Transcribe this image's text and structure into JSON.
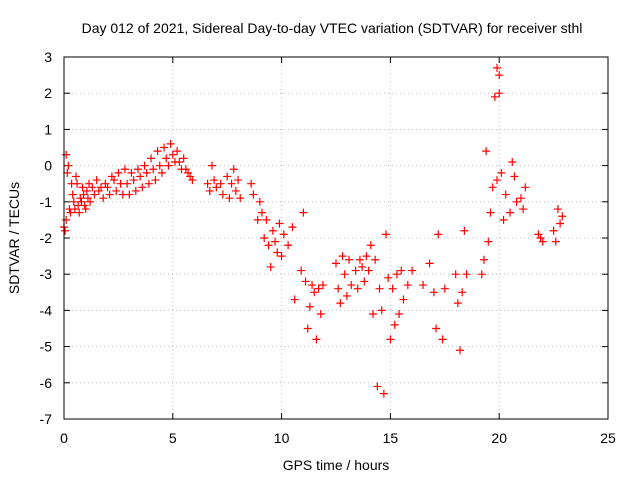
{
  "chart_data": {
    "type": "scatter",
    "title": "Day 012 of 2021, Sidereal Day-to-day VTEC variation (SDTVAR) for receiver sthl",
    "xlabel": "GPS time / hours",
    "ylabel": "SDTVAR / TECUs",
    "xlim": [
      0,
      25
    ],
    "ylim": [
      -7,
      3
    ],
    "xticks": [
      "0",
      "5",
      "10",
      "15",
      "20",
      "25"
    ],
    "yticks": [
      "3",
      "2",
      "1",
      "0",
      "-1",
      "-2",
      "-3",
      "-4",
      "-5",
      "-6",
      "-7"
    ],
    "grid": true,
    "marker": "+",
    "color": "#ff0000",
    "series": [
      {
        "name": "sthl",
        "points": [
          [
            0.0,
            -1.7
          ],
          [
            0.05,
            -1.8
          ],
          [
            0.1,
            -1.5
          ],
          [
            0.1,
            0.3
          ],
          [
            0.15,
            -0.2
          ],
          [
            0.2,
            0.0
          ],
          [
            0.25,
            -1.2
          ],
          [
            0.3,
            -1.3
          ],
          [
            0.35,
            -0.5
          ],
          [
            0.4,
            -0.8
          ],
          [
            0.45,
            -1.0
          ],
          [
            0.5,
            -1.2
          ],
          [
            0.55,
            -0.3
          ],
          [
            0.6,
            -0.5
          ],
          [
            0.65,
            -1.1
          ],
          [
            0.7,
            -1.3
          ],
          [
            0.75,
            -0.9
          ],
          [
            0.8,
            -1.0
          ],
          [
            0.85,
            -0.6
          ],
          [
            0.9,
            -0.8
          ],
          [
            0.95,
            -1.1
          ],
          [
            1.0,
            -1.2
          ],
          [
            1.05,
            -0.7
          ],
          [
            1.1,
            -0.9
          ],
          [
            1.15,
            -0.5
          ],
          [
            1.2,
            -1.0
          ],
          [
            1.3,
            -0.6
          ],
          [
            1.4,
            -0.8
          ],
          [
            1.5,
            -0.4
          ],
          [
            1.6,
            -0.7
          ],
          [
            1.7,
            -0.6
          ],
          [
            1.8,
            -0.9
          ],
          [
            1.9,
            -0.5
          ],
          [
            2.0,
            -0.6
          ],
          [
            2.1,
            -0.8
          ],
          [
            2.2,
            -0.3
          ],
          [
            2.3,
            -0.4
          ],
          [
            2.4,
            -0.7
          ],
          [
            2.5,
            -0.2
          ],
          [
            2.6,
            -0.5
          ],
          [
            2.7,
            -0.8
          ],
          [
            2.8,
            -0.1
          ],
          [
            2.9,
            -0.5
          ],
          [
            3.0,
            -0.8
          ],
          [
            3.1,
            -0.2
          ],
          [
            3.2,
            -0.4
          ],
          [
            3.3,
            -0.7
          ],
          [
            3.4,
            -0.1
          ],
          [
            3.5,
            -0.3
          ],
          [
            3.6,
            -0.6
          ],
          [
            3.7,
            0.0
          ],
          [
            3.8,
            -0.2
          ],
          [
            3.9,
            -0.5
          ],
          [
            4.0,
            0.2
          ],
          [
            4.1,
            -0.1
          ],
          [
            4.2,
            -0.4
          ],
          [
            4.3,
            0.4
          ],
          [
            4.4,
            0.0
          ],
          [
            4.5,
            -0.2
          ],
          [
            4.6,
            0.5
          ],
          [
            4.7,
            0.2
          ],
          [
            4.8,
            0.0
          ],
          [
            4.9,
            0.6
          ],
          [
            5.0,
            0.3
          ],
          [
            5.1,
            0.1
          ],
          [
            5.2,
            0.4
          ],
          [
            5.3,
            0.1
          ],
          [
            5.4,
            -0.1
          ],
          [
            5.5,
            0.2
          ],
          [
            5.6,
            -0.1
          ],
          [
            5.7,
            -0.2
          ],
          [
            5.8,
            -0.3
          ],
          [
            5.9,
            -0.4
          ],
          [
            6.6,
            -0.5
          ],
          [
            6.7,
            -0.7
          ],
          [
            6.8,
            0.0
          ],
          [
            6.9,
            -0.4
          ],
          [
            7.0,
            -0.6
          ],
          [
            7.2,
            -0.5
          ],
          [
            7.3,
            -0.8
          ],
          [
            7.5,
            -0.3
          ],
          [
            7.6,
            -0.9
          ],
          [
            7.7,
            -0.5
          ],
          [
            7.8,
            -0.1
          ],
          [
            7.9,
            -0.7
          ],
          [
            8.0,
            -0.4
          ],
          [
            8.1,
            -0.9
          ],
          [
            8.6,
            -0.5
          ],
          [
            8.7,
            -0.8
          ],
          [
            8.9,
            -1.5
          ],
          [
            9.0,
            -1.0
          ],
          [
            9.1,
            -1.3
          ],
          [
            9.2,
            -2.0
          ],
          [
            9.3,
            -1.5
          ],
          [
            9.4,
            -2.2
          ],
          [
            9.5,
            -2.8
          ],
          [
            9.6,
            -1.8
          ],
          [
            9.7,
            -2.1
          ],
          [
            9.8,
            -2.4
          ],
          [
            9.9,
            -1.6
          ],
          [
            10.0,
            -2.5
          ],
          [
            10.1,
            -1.9
          ],
          [
            10.3,
            -2.2
          ],
          [
            10.5,
            -1.7
          ],
          [
            10.6,
            -3.7
          ],
          [
            10.9,
            -2.9
          ],
          [
            11.0,
            -1.3
          ],
          [
            11.1,
            -3.2
          ],
          [
            11.2,
            -4.5
          ],
          [
            11.3,
            -3.9
          ],
          [
            11.4,
            -3.3
          ],
          [
            11.5,
            -3.5
          ],
          [
            11.6,
            -4.8
          ],
          [
            11.7,
            -3.4
          ],
          [
            11.8,
            -4.1
          ],
          [
            11.9,
            -3.3
          ],
          [
            12.5,
            -2.7
          ],
          [
            12.6,
            -3.4
          ],
          [
            12.7,
            -3.8
          ],
          [
            12.8,
            -2.5
          ],
          [
            12.9,
            -3.0
          ],
          [
            13.0,
            -3.6
          ],
          [
            13.1,
            -2.6
          ],
          [
            13.2,
            -3.3
          ],
          [
            13.4,
            -2.9
          ],
          [
            13.5,
            -3.4
          ],
          [
            13.6,
            -2.6
          ],
          [
            13.7,
            -2.8
          ],
          [
            13.8,
            -3.2
          ],
          [
            13.9,
            -2.5
          ],
          [
            14.0,
            -2.9
          ],
          [
            14.1,
            -2.2
          ],
          [
            14.2,
            -4.1
          ],
          [
            14.3,
            -2.6
          ],
          [
            14.4,
            -6.1
          ],
          [
            14.5,
            -3.4
          ],
          [
            14.6,
            -4.0
          ],
          [
            14.7,
            -6.3
          ],
          [
            14.8,
            -1.9
          ],
          [
            14.9,
            -3.1
          ],
          [
            15.0,
            -4.8
          ],
          [
            15.1,
            -3.4
          ],
          [
            15.2,
            -4.4
          ],
          [
            15.3,
            -3.0
          ],
          [
            15.4,
            -4.1
          ],
          [
            15.5,
            -2.9
          ],
          [
            15.6,
            -3.7
          ],
          [
            15.8,
            -3.3
          ],
          [
            16.0,
            -2.9
          ],
          [
            16.5,
            -3.3
          ],
          [
            16.8,
            -2.7
          ],
          [
            17.0,
            -3.5
          ],
          [
            17.1,
            -4.5
          ],
          [
            17.2,
            -1.9
          ],
          [
            17.4,
            -4.8
          ],
          [
            17.5,
            -3.4
          ],
          [
            18.0,
            -3.0
          ],
          [
            18.1,
            -3.8
          ],
          [
            18.2,
            -5.1
          ],
          [
            18.3,
            -3.5
          ],
          [
            18.4,
            -1.8
          ],
          [
            18.5,
            -3.0
          ],
          [
            19.2,
            -3.0
          ],
          [
            19.3,
            -2.6
          ],
          [
            19.4,
            0.4
          ],
          [
            19.5,
            -2.1
          ],
          [
            19.6,
            -1.3
          ],
          [
            19.7,
            -0.6
          ],
          [
            19.8,
            1.9
          ],
          [
            19.9,
            2.7
          ],
          [
            19.9,
            -0.4
          ],
          [
            20.0,
            2.0
          ],
          [
            20.0,
            2.5
          ],
          [
            20.1,
            -0.2
          ],
          [
            20.2,
            -1.5
          ],
          [
            20.3,
            -0.8
          ],
          [
            20.5,
            -1.3
          ],
          [
            20.6,
            0.1
          ],
          [
            20.7,
            -0.3
          ],
          [
            20.8,
            -1.0
          ],
          [
            21.0,
            -0.9
          ],
          [
            21.1,
            -1.2
          ],
          [
            21.2,
            -0.6
          ],
          [
            21.8,
            -1.9
          ],
          [
            21.9,
            -2.0
          ],
          [
            22.0,
            -2.1
          ],
          [
            22.5,
            -1.8
          ],
          [
            22.6,
            -2.1
          ],
          [
            22.7,
            -1.2
          ],
          [
            22.8,
            -1.6
          ],
          [
            22.9,
            -1.4
          ]
        ]
      }
    ]
  }
}
